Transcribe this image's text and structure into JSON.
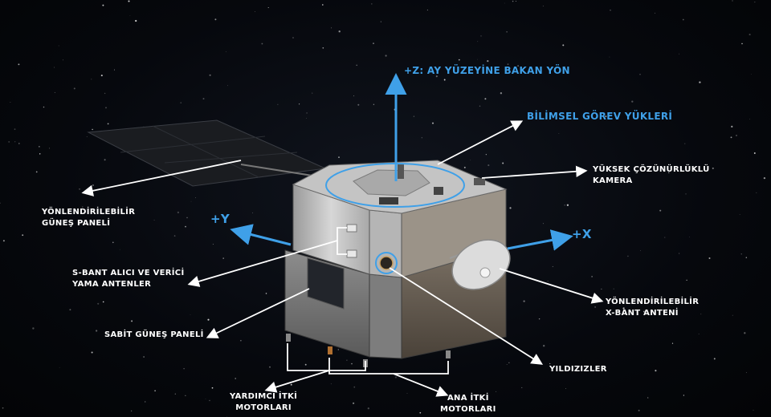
{
  "colors": {
    "background": "#05070c",
    "accent_blue": "#3fa0e8",
    "label_white": "#ffffff",
    "panel_silver": "#c9c9c9",
    "body_bronze": "#6e6457"
  },
  "axes": {
    "z": "+Z: AY YÜZEYİNE BAKAN YÖN",
    "x": "+X",
    "y": "+Y"
  },
  "labels": {
    "scientific_payloads": "BİLİMSEL GÖREV YÜKLERİ",
    "camera_line1": "YÜKSEK ÇÖZÜNÜRLÜKLÜ",
    "camera_line2": "KAMERA",
    "solar_panel_line1": "YÖNLENDİRİLEBİLİR",
    "solar_panel_line2": "GÜNEŞ PANELİ",
    "sband_line1": "S-BANT ALICI VE VERİCİ",
    "sband_line2": "YAMA ANTENLER",
    "fixed_panel": "SABİT GÜNEŞ PANELİ",
    "xband_line1": "YÖNLENDİRİLEBİLİR",
    "xband_line2": "X-BANT ANTENİ",
    "star_trackers": "YILDIZIZLER",
    "aux_thrusters_line1": "YARDIMCI İTKİ",
    "aux_thrusters_line2": "MOTORLARI",
    "main_thrusters_line1": "ANA İTKİ",
    "main_thrusters_line2": "MOTORLARI"
  }
}
